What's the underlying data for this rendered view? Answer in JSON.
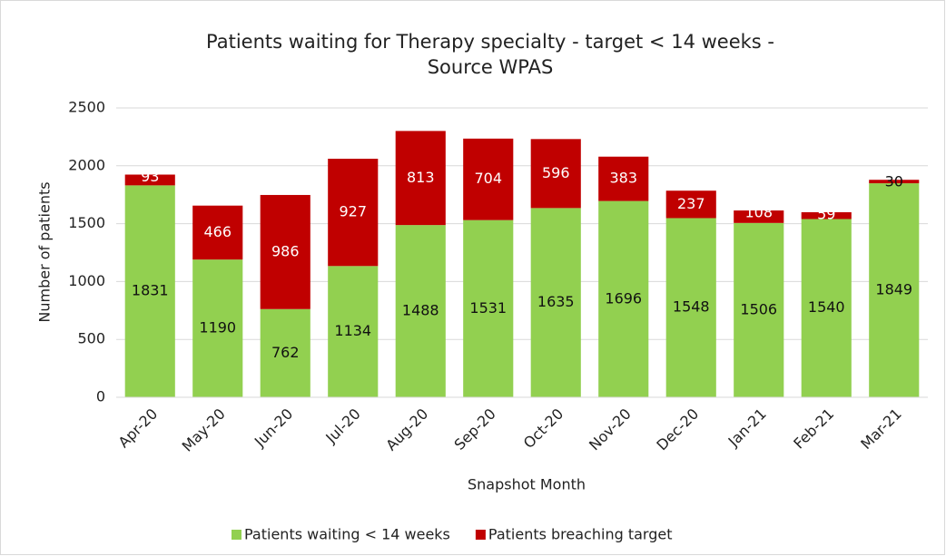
{
  "chart_data": {
    "type": "stacked_bar",
    "title": [
      "Patients waiting for Therapy specialty - target < 14 weeks -",
      "Source WPAS"
    ],
    "x_label": "Snapshot Month",
    "y_label": "Number of patients",
    "categories": [
      "Apr-20",
      "May-20",
      "Jun-20",
      "Jul-20",
      "Aug-20",
      "Sep-20",
      "Oct-20",
      "Nov-20",
      "Dec-20",
      "Jan-21",
      "Feb-21",
      "Mar-21"
    ],
    "series": [
      {
        "name": "Patients waiting < 14 weeks",
        "color": "#92d050",
        "values": [
          1831,
          1190,
          762,
          1134,
          1488,
          1531,
          1635,
          1696,
          1548,
          1506,
          1540,
          1849
        ]
      },
      {
        "name": "Patients breaching target",
        "color": "#c00000",
        "values": [
          93,
          466,
          986,
          927,
          813,
          704,
          596,
          383,
          237,
          108,
          59,
          30
        ]
      }
    ],
    "ylim": [
      0,
      2500
    ],
    "yticks": [
      0,
      500,
      1000,
      1500,
      2000,
      2500
    ],
    "grid": true,
    "legend": "bottom"
  }
}
